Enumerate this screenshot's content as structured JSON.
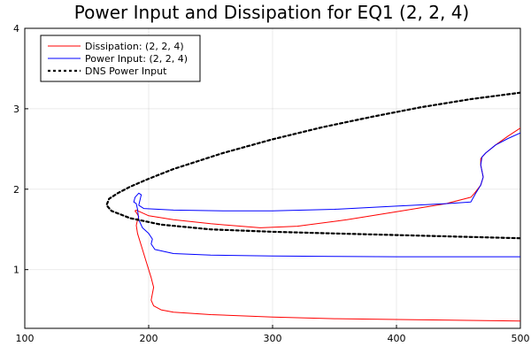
{
  "chart_data": {
    "type": "line",
    "title": "Power Input and Dissipation for EQ1 (2, 2, 4)",
    "xlabel": "",
    "ylabel": "",
    "xlim": [
      100,
      500
    ],
    "ylim": [
      0.27,
      4.0
    ],
    "x_ticks": [
      100,
      200,
      300,
      400,
      500
    ],
    "y_ticks": [
      1,
      2,
      3,
      4
    ],
    "x_tick_labels": [
      "100",
      "200",
      "300",
      "400",
      "500"
    ],
    "y_tick_labels": [
      "1",
      "2",
      "3",
      "4"
    ],
    "grid": true,
    "legend_position": "top-left",
    "series": [
      {
        "name": "Dissipation: (2, 2, 4)",
        "color": "#ff0000",
        "style": "solid",
        "points": [
          [
            500,
            0.36
          ],
          [
            450,
            0.37
          ],
          [
            400,
            0.38
          ],
          [
            350,
            0.39
          ],
          [
            300,
            0.41
          ],
          [
            250,
            0.44
          ],
          [
            220,
            0.47
          ],
          [
            210,
            0.5
          ],
          [
            204,
            0.55
          ],
          [
            202,
            0.62
          ],
          [
            203,
            0.7
          ],
          [
            204,
            0.78
          ],
          [
            202,
            0.9
          ],
          [
            198,
            1.1
          ],
          [
            194,
            1.3
          ],
          [
            191,
            1.45
          ],
          [
            190,
            1.55
          ],
          [
            191,
            1.62
          ],
          [
            192,
            1.66
          ],
          [
            190,
            1.71
          ],
          [
            189,
            1.73
          ],
          [
            190,
            1.74
          ],
          [
            200,
            1.67
          ],
          [
            220,
            1.62
          ],
          [
            250,
            1.57
          ],
          [
            290,
            1.52
          ],
          [
            320,
            1.54
          ],
          [
            360,
            1.62
          ],
          [
            400,
            1.72
          ],
          [
            440,
            1.82
          ],
          [
            460,
            1.9
          ],
          [
            463,
            1.95
          ],
          [
            468,
            2.05
          ],
          [
            470,
            2.15
          ],
          [
            468,
            2.3
          ],
          [
            468,
            2.38
          ],
          [
            472,
            2.45
          ],
          [
            480,
            2.55
          ],
          [
            490,
            2.66
          ],
          [
            500,
            2.76
          ]
        ]
      },
      {
        "name": "Power Input: (2, 2, 4)",
        "color": "#0000ff",
        "style": "solid",
        "points": [
          [
            500,
            1.16
          ],
          [
            450,
            1.16
          ],
          [
            400,
            1.16
          ],
          [
            350,
            1.165
          ],
          [
            300,
            1.17
          ],
          [
            250,
            1.18
          ],
          [
            220,
            1.2
          ],
          [
            205,
            1.25
          ],
          [
            202,
            1.32
          ],
          [
            203,
            1.38
          ],
          [
            200,
            1.45
          ],
          [
            195,
            1.52
          ],
          [
            192,
            1.62
          ],
          [
            191,
            1.75
          ],
          [
            190,
            1.82
          ],
          [
            188,
            1.84
          ],
          [
            189,
            1.9
          ],
          [
            192,
            1.95
          ],
          [
            194,
            1.93
          ],
          [
            192,
            1.8
          ],
          [
            196,
            1.76
          ],
          [
            220,
            1.74
          ],
          [
            260,
            1.73
          ],
          [
            300,
            1.73
          ],
          [
            350,
            1.75
          ],
          [
            400,
            1.79
          ],
          [
            440,
            1.82
          ],
          [
            460,
            1.84
          ],
          [
            464,
            1.95
          ],
          [
            468,
            2.05
          ],
          [
            470,
            2.15
          ],
          [
            468,
            2.3
          ],
          [
            469,
            2.4
          ],
          [
            472,
            2.45
          ],
          [
            480,
            2.55
          ],
          [
            490,
            2.63
          ],
          [
            500,
            2.7
          ]
        ]
      },
      {
        "name": "DNS Power Input",
        "color": "#000000",
        "style": "dashed",
        "points": [
          [
            500,
            3.2
          ],
          [
            460,
            3.12
          ],
          [
            420,
            3.02
          ],
          [
            380,
            2.9
          ],
          [
            340,
            2.77
          ],
          [
            300,
            2.62
          ],
          [
            260,
            2.45
          ],
          [
            220,
            2.25
          ],
          [
            200,
            2.13
          ],
          [
            185,
            2.03
          ],
          [
            175,
            1.95
          ],
          [
            168,
            1.88
          ],
          [
            166,
            1.8
          ],
          [
            170,
            1.73
          ],
          [
            185,
            1.64
          ],
          [
            210,
            1.56
          ],
          [
            250,
            1.5
          ],
          [
            300,
            1.47
          ],
          [
            350,
            1.45
          ],
          [
            400,
            1.43
          ],
          [
            450,
            1.41
          ],
          [
            500,
            1.39
          ]
        ]
      }
    ]
  }
}
